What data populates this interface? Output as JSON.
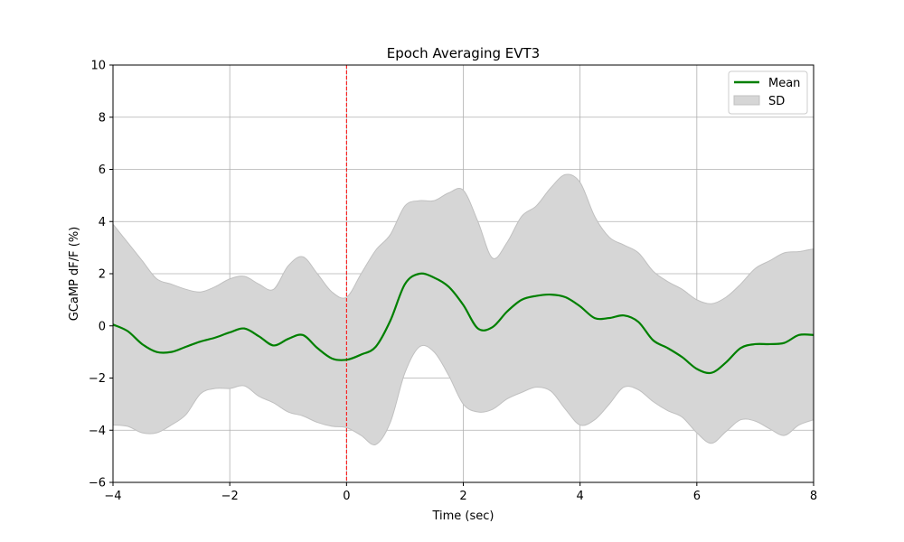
{
  "chart_data": {
    "type": "line",
    "title": "Epoch Averaging EVT3",
    "xlabel": "Time (sec)",
    "ylabel": "GCaMP dF/F (%)",
    "xlim": [
      -4,
      8
    ],
    "ylim": [
      -6,
      10
    ],
    "xticks": [
      -4,
      -2,
      0,
      2,
      4,
      6,
      8
    ],
    "xtick_labels": [
      "−4",
      "−2",
      "0",
      "2",
      "4",
      "6",
      "8"
    ],
    "yticks": [
      -6,
      -4,
      -2,
      0,
      2,
      4,
      6,
      8,
      10
    ],
    "ytick_labels": [
      "−6",
      "−4",
      "−2",
      "0",
      "2",
      "4",
      "6",
      "8",
      "10"
    ],
    "grid": true,
    "legend_position": "top-right",
    "event_line": {
      "x": 0,
      "color": "#ff0000",
      "style": "dashed"
    },
    "series": [
      {
        "name": "Mean",
        "color": "#008000",
        "x": [
          -4,
          -3.75,
          -3.5,
          -3.25,
          -3,
          -2.75,
          -2.5,
          -2.25,
          -2,
          -1.75,
          -1.5,
          -1.25,
          -1,
          -0.75,
          -0.5,
          -0.25,
          0,
          0.25,
          0.5,
          0.75,
          1,
          1.25,
          1.5,
          1.75,
          2,
          2.25,
          2.5,
          2.75,
          3,
          3.25,
          3.5,
          3.75,
          4,
          4.25,
          4.5,
          4.75,
          5,
          5.25,
          5.5,
          5.75,
          6,
          6.25,
          6.5,
          6.75,
          7,
          7.25,
          7.5,
          7.75,
          8
        ],
        "y": [
          0.05,
          -0.2,
          -0.7,
          -1.0,
          -1.0,
          -0.8,
          -0.6,
          -0.45,
          -0.25,
          -0.1,
          -0.4,
          -0.75,
          -0.5,
          -0.35,
          -0.85,
          -1.25,
          -1.3,
          -1.1,
          -0.8,
          0.2,
          1.6,
          2.0,
          1.85,
          1.5,
          0.8,
          -0.1,
          -0.05,
          0.55,
          1.0,
          1.15,
          1.2,
          1.1,
          0.75,
          0.3,
          0.3,
          0.4,
          0.15,
          -0.55,
          -0.85,
          -1.2,
          -1.65,
          -1.8,
          -1.4,
          -0.85,
          -0.7,
          -0.7,
          -0.65,
          -0.35,
          -0.35
        ]
      }
    ],
    "band": {
      "name": "SD",
      "color": "#d6d6d6",
      "edge_color": "#c0c0c0",
      "x": [
        -4,
        -3.75,
        -3.5,
        -3.25,
        -3,
        -2.75,
        -2.5,
        -2.25,
        -2,
        -1.75,
        -1.5,
        -1.25,
        -1,
        -0.75,
        -0.5,
        -0.25,
        0,
        0.25,
        0.5,
        0.75,
        1,
        1.25,
        1.5,
        1.75,
        2,
        2.25,
        2.5,
        2.75,
        3,
        3.25,
        3.5,
        3.75,
        4,
        4.25,
        4.5,
        4.75,
        5,
        5.25,
        5.5,
        5.75,
        6,
        6.25,
        6.5,
        6.75,
        7,
        7.25,
        7.5,
        7.75,
        8
      ],
      "upper": [
        3.9,
        3.2,
        2.5,
        1.8,
        1.6,
        1.4,
        1.3,
        1.5,
        1.8,
        1.9,
        1.6,
        1.4,
        2.3,
        2.65,
        2.0,
        1.3,
        1.1,
        2.0,
        2.9,
        3.5,
        4.6,
        4.8,
        4.8,
        5.1,
        5.2,
        4.0,
        2.6,
        3.2,
        4.2,
        4.6,
        5.3,
        5.8,
        5.5,
        4.2,
        3.4,
        3.1,
        2.8,
        2.1,
        1.7,
        1.4,
        1.0,
        0.85,
        1.1,
        1.6,
        2.2,
        2.5,
        2.8,
        2.85,
        2.95
      ],
      "lower": [
        -3.8,
        -3.85,
        -4.1,
        -4.1,
        -3.8,
        -3.4,
        -2.6,
        -2.4,
        -2.4,
        -2.3,
        -2.7,
        -2.95,
        -3.3,
        -3.45,
        -3.7,
        -3.85,
        -3.9,
        -4.2,
        -4.55,
        -3.7,
        -1.8,
        -0.8,
        -1.0,
        -1.9,
        -3.0,
        -3.3,
        -3.2,
        -2.8,
        -2.55,
        -2.35,
        -2.5,
        -3.2,
        -3.8,
        -3.6,
        -3.0,
        -2.35,
        -2.45,
        -2.9,
        -3.25,
        -3.5,
        -4.1,
        -4.5,
        -4.05,
        -3.6,
        -3.65,
        -3.95,
        -4.2,
        -3.8,
        -3.6
      ]
    }
  }
}
